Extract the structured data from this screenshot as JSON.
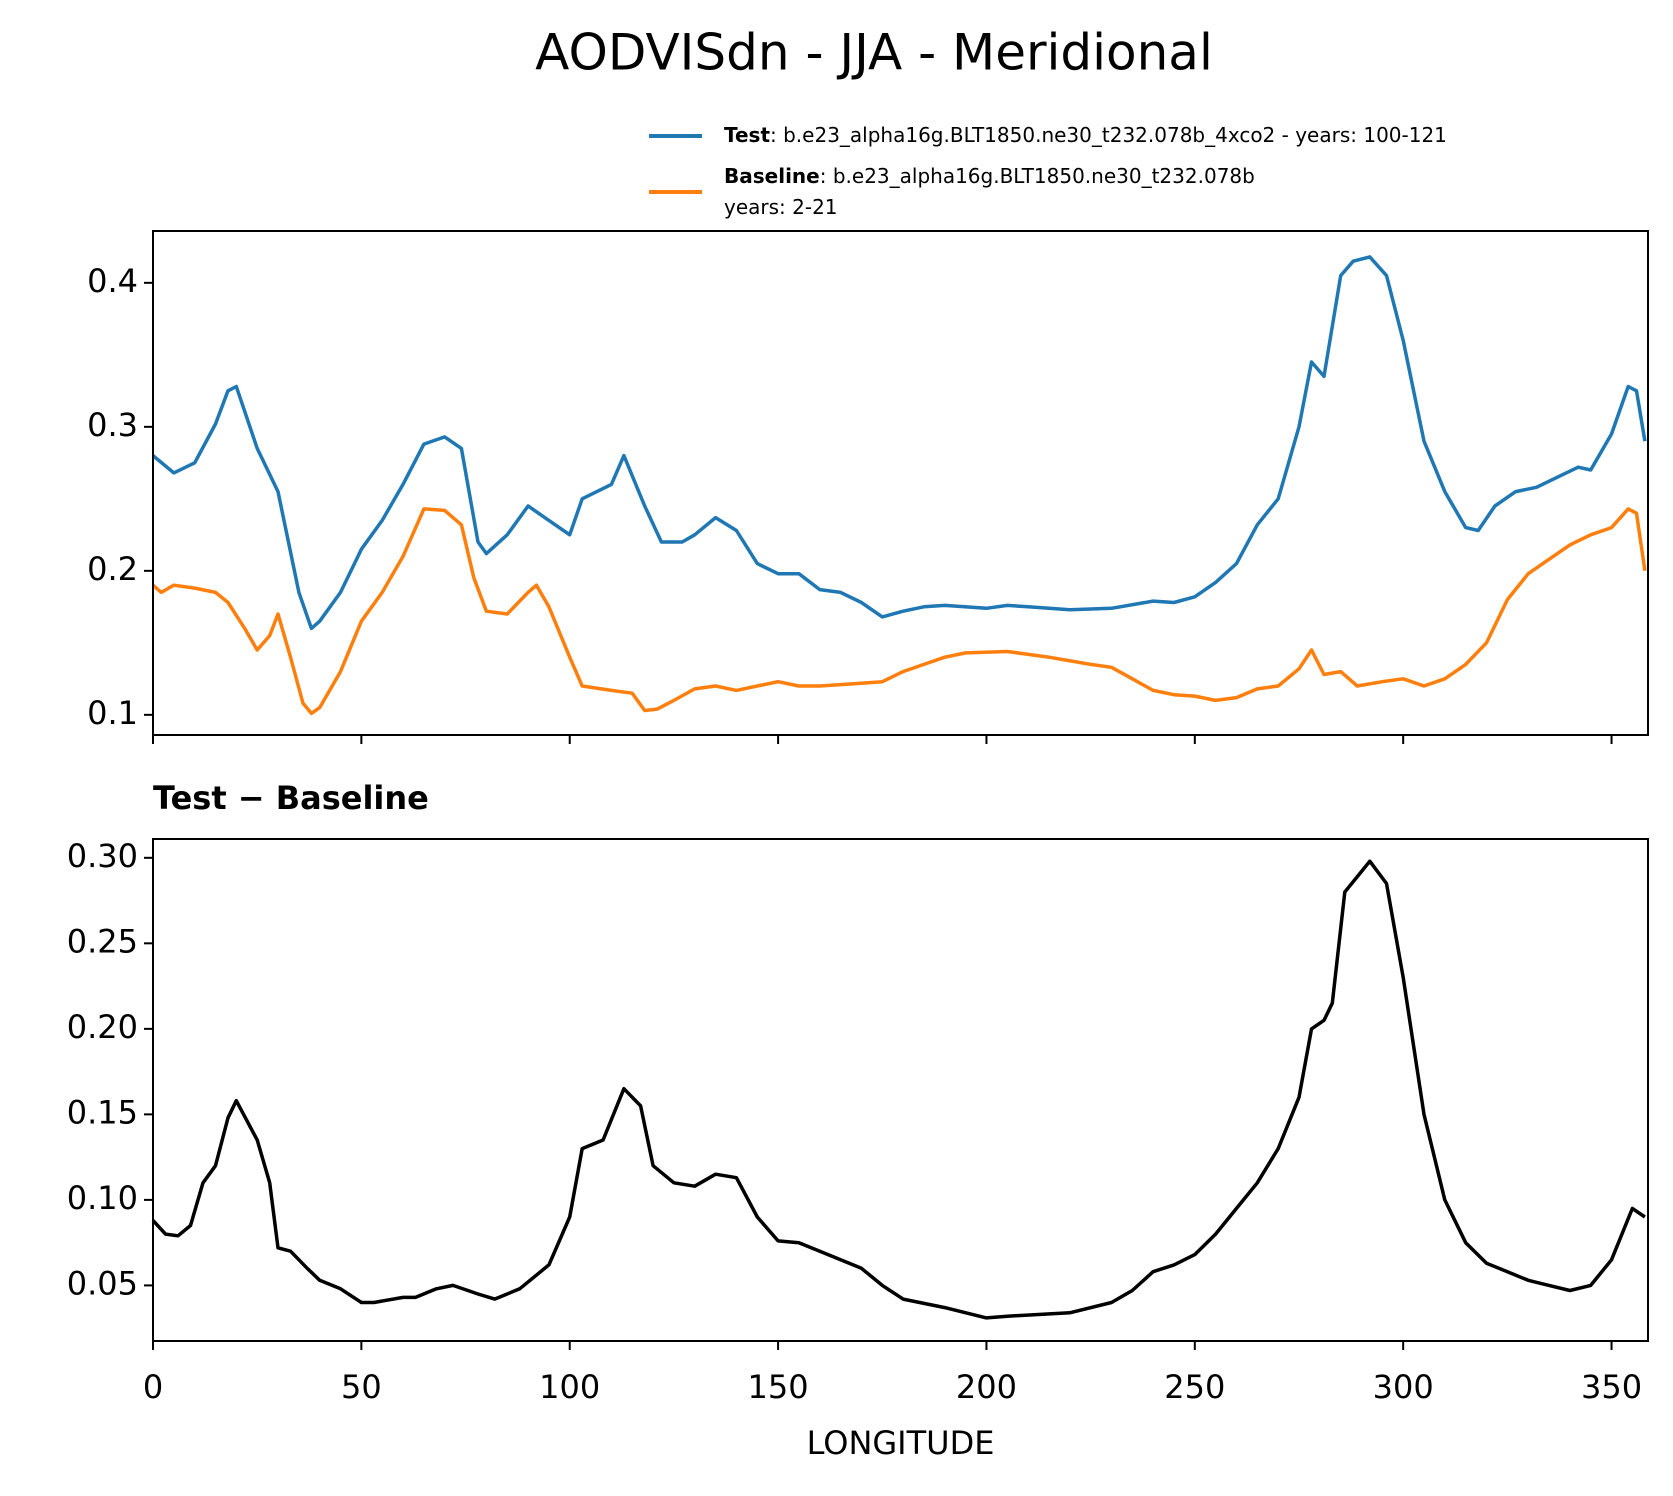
{
  "title": "AODVISdn - JJA - Meridional",
  "chart_data": [
    {
      "type": "line",
      "xlim": [
        0,
        358.75
      ],
      "ylim": [
        0.086,
        0.436
      ],
      "xticks": [
        0,
        50,
        100,
        150,
        200,
        250,
        300,
        350
      ],
      "show_xticklabels": false,
      "yticks": [
        0.1,
        0.2,
        0.3,
        0.4
      ],
      "legend": "upper right",
      "series": [
        {
          "name": "Test",
          "description": [
            ": b.e23_alpha16g.BLT1850.ne30_t232.078b_4xco2 - years: 100-121"
          ],
          "color": "#1f77b4",
          "x": [
            0,
            5,
            10,
            15,
            18,
            20,
            25,
            30,
            35,
            38,
            40,
            45,
            50,
            55,
            60,
            65,
            70,
            74,
            78,
            80,
            85,
            90,
            95,
            100,
            103,
            110,
            113,
            118,
            122,
            127,
            130,
            135,
            140,
            145,
            150,
            155,
            160,
            165,
            170,
            175,
            180,
            185,
            190,
            200,
            205,
            210,
            220,
            230,
            240,
            245,
            250,
            255,
            260,
            265,
            270,
            275,
            278,
            281,
            285,
            288,
            292,
            296,
            300,
            305,
            310,
            315,
            318,
            322,
            327,
            332,
            337,
            342,
            345,
            350,
            354,
            356,
            358
          ],
          "values": [
            0.28,
            0.268,
            0.275,
            0.302,
            0.325,
            0.328,
            0.285,
            0.255,
            0.185,
            0.16,
            0.165,
            0.185,
            0.215,
            0.235,
            0.26,
            0.288,
            0.293,
            0.285,
            0.22,
            0.212,
            0.225,
            0.245,
            0.235,
            0.225,
            0.25,
            0.26,
            0.28,
            0.245,
            0.22,
            0.22,
            0.225,
            0.237,
            0.228,
            0.205,
            0.198,
            0.198,
            0.187,
            0.185,
            0.178,
            0.168,
            0.172,
            0.175,
            0.176,
            0.174,
            0.176,
            0.175,
            0.173,
            0.174,
            0.179,
            0.178,
            0.182,
            0.192,
            0.205,
            0.232,
            0.25,
            0.3,
            0.345,
            0.335,
            0.405,
            0.415,
            0.418,
            0.405,
            0.36,
            0.29,
            0.255,
            0.23,
            0.228,
            0.245,
            0.255,
            0.258,
            0.265,
            0.272,
            0.27,
            0.295,
            0.328,
            0.325,
            0.29
          ]
        },
        {
          "name": "Baseline",
          "description": [
            ": b.e23_alpha16g.BLT1850.ne30_t232.078b",
            "years: 2-21"
          ],
          "color": "#ff7f0e",
          "x": [
            0,
            2,
            5,
            10,
            15,
            18,
            22,
            25,
            28,
            30,
            33,
            36,
            38,
            40,
            45,
            50,
            55,
            60,
            65,
            70,
            74,
            77,
            80,
            85,
            90,
            92,
            95,
            100,
            103,
            110,
            115,
            118,
            121,
            125,
            130,
            135,
            140,
            145,
            150,
            155,
            160,
            170,
            175,
            180,
            185,
            190,
            195,
            205,
            215,
            225,
            230,
            235,
            240,
            245,
            250,
            255,
            260,
            265,
            270,
            275,
            278,
            281,
            285,
            289,
            295,
            300,
            305,
            310,
            315,
            320,
            325,
            330,
            335,
            340,
            345,
            350,
            354,
            356,
            358
          ],
          "values": [
            0.19,
            0.185,
            0.19,
            0.188,
            0.185,
            0.178,
            0.16,
            0.145,
            0.155,
            0.17,
            0.14,
            0.108,
            0.101,
            0.105,
            0.13,
            0.165,
            0.185,
            0.21,
            0.243,
            0.242,
            0.232,
            0.195,
            0.172,
            0.17,
            0.185,
            0.19,
            0.175,
            0.14,
            0.12,
            0.117,
            0.115,
            0.103,
            0.104,
            0.11,
            0.118,
            0.12,
            0.117,
            0.12,
            0.123,
            0.12,
            0.12,
            0.122,
            0.123,
            0.13,
            0.135,
            0.14,
            0.143,
            0.144,
            0.14,
            0.135,
            0.133,
            0.125,
            0.117,
            0.114,
            0.113,
            0.11,
            0.112,
            0.118,
            0.12,
            0.132,
            0.145,
            0.128,
            0.13,
            0.12,
            0.123,
            0.125,
            0.12,
            0.125,
            0.135,
            0.15,
            0.18,
            0.198,
            0.208,
            0.218,
            0.225,
            0.23,
            0.243,
            0.24,
            0.2
          ]
        }
      ]
    },
    {
      "type": "line",
      "title": "Test − Baseline",
      "xlabel": "LONGITUDE",
      "xlim": [
        0,
        358.75
      ],
      "ylim": [
        0.0175,
        0.311
      ],
      "xticks": [
        0,
        50,
        100,
        150,
        200,
        250,
        300,
        350
      ],
      "show_xticklabels": true,
      "yticks": [
        0.05,
        {
          "value": 0.1,
          "label": "0.10"
        },
        0.15,
        {
          "value": 0.2,
          "label": "0.20"
        },
        0.25,
        {
          "value": 0.3,
          "label": "0.30"
        }
      ],
      "series": [
        {
          "color": "#000000",
          "x": [
            0,
            3,
            6,
            9,
            12,
            15,
            18,
            20,
            25,
            28,
            30,
            33,
            37,
            40,
            45,
            50,
            53,
            60,
            63,
            68,
            72,
            78,
            82,
            88,
            95,
            100,
            103,
            108,
            113,
            117,
            120,
            125,
            130,
            135,
            140,
            145,
            150,
            155,
            160,
            165,
            170,
            175,
            180,
            190,
            200,
            205,
            220,
            230,
            235,
            240,
            245,
            250,
            255,
            260,
            265,
            270,
            275,
            278,
            281,
            283,
            286,
            290,
            292,
            296,
            300,
            305,
            310,
            315,
            320,
            325,
            330,
            335,
            340,
            345,
            350,
            355,
            358
          ],
          "values": [
            0.088,
            0.08,
            0.079,
            0.085,
            0.11,
            0.12,
            0.148,
            0.158,
            0.135,
            0.11,
            0.072,
            0.07,
            0.06,
            0.053,
            0.048,
            0.04,
            0.04,
            0.043,
            0.043,
            0.048,
            0.05,
            0.045,
            0.042,
            0.048,
            0.062,
            0.09,
            0.13,
            0.135,
            0.165,
            0.155,
            0.12,
            0.11,
            0.108,
            0.115,
            0.113,
            0.09,
            0.076,
            0.075,
            0.07,
            0.065,
            0.06,
            0.05,
            0.042,
            0.037,
            0.031,
            0.032,
            0.034,
            0.04,
            0.047,
            0.058,
            0.062,
            0.068,
            0.08,
            0.095,
            0.11,
            0.13,
            0.16,
            0.2,
            0.205,
            0.215,
            0.28,
            0.292,
            0.298,
            0.285,
            0.23,
            0.15,
            0.1,
            0.075,
            0.063,
            0.058,
            0.053,
            0.05,
            0.047,
            0.05,
            0.065,
            0.095,
            0.09
          ]
        }
      ]
    }
  ]
}
